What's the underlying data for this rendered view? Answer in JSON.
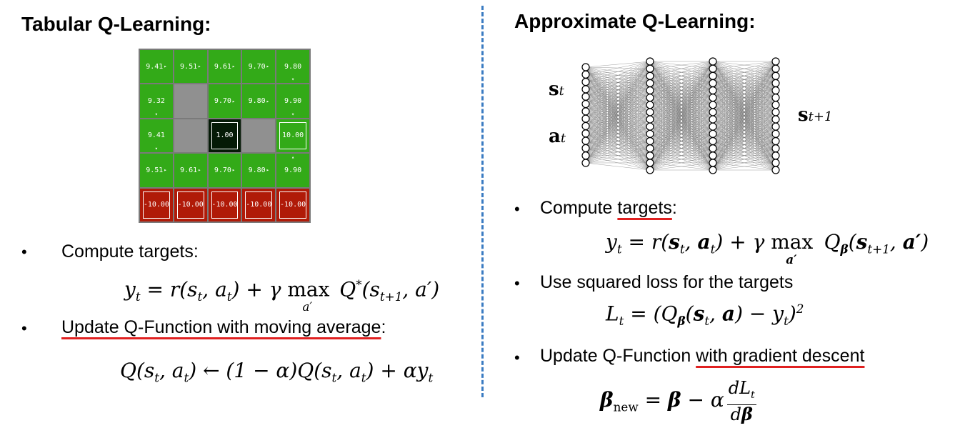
{
  "left": {
    "heading": "Tabular Q-Learning:",
    "grid": [
      [
        "9.41",
        "9.51",
        "9.61",
        "9.70",
        "9.80"
      ],
      [
        "9.32",
        "",
        "9.70",
        "9.80",
        "9.90"
      ],
      [
        "9.41",
        "",
        "1.00",
        "",
        "10.00"
      ],
      [
        "9.51",
        "9.61",
        "9.70",
        "9.80",
        "9.90"
      ],
      [
        "-10.00",
        "-10.00",
        "-10.00",
        "-10.00",
        "-10.00"
      ]
    ],
    "bullet1": "Compute targets:",
    "bullet2_underlined": "Update Q-Function with moving average",
    "bullet2_tail": ":"
  },
  "right": {
    "heading": "Approximate Q-Learning:",
    "bullet1_pre": "Compute ",
    "bullet1_underlined": "targets",
    "bullet1_tail": ":",
    "bullet2": "Use squared loss for the targets",
    "bullet3_pre": "Update Q-Function ",
    "bullet3_underlined": "with gradient descent"
  },
  "bullet_char": "•"
}
